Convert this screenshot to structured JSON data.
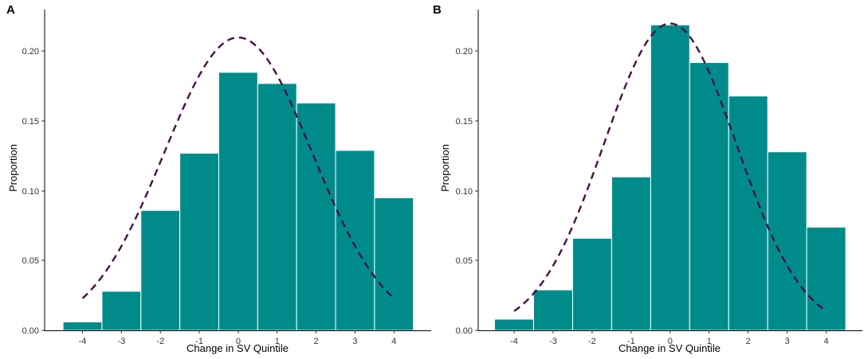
{
  "chart_data": [
    {
      "panel": "A",
      "type": "bar",
      "xlabel": "Change in SV Quintile",
      "ylabel": "Proportion",
      "x_ticks": [
        "-4",
        "-3",
        "-2",
        "-1",
        "0",
        "1",
        "2",
        "3",
        "4"
      ],
      "y_ticks": [
        "0.00",
        "0.05",
        "0.10",
        "0.15",
        "0.20"
      ],
      "ylim": [
        0,
        0.23
      ],
      "x": [
        -4,
        -3,
        -2,
        -1,
        0,
        1,
        2,
        3,
        4
      ],
      "values": [
        0.006,
        0.028,
        0.086,
        0.127,
        0.185,
        0.177,
        0.163,
        0.129,
        0.095
      ],
      "overlay": {
        "type": "normal-density-dashed",
        "mean": 0,
        "sd": 1.9,
        "peak": 0.21,
        "x_range": [
          -4,
          4
        ]
      }
    },
    {
      "panel": "B",
      "type": "bar",
      "xlabel": "Change in SV Quintile",
      "ylabel": "Proportion",
      "x_ticks": [
        "-4",
        "-3",
        "-2",
        "-1",
        "0",
        "1",
        "2",
        "3",
        "4"
      ],
      "y_ticks": [
        "0.00",
        "0.05",
        "0.10",
        "0.15",
        "0.20"
      ],
      "ylim": [
        0,
        0.23
      ],
      "x": [
        -4,
        -3,
        -2,
        -1,
        0,
        1,
        2,
        3,
        4
      ],
      "values": [
        0.008,
        0.029,
        0.066,
        0.11,
        0.219,
        0.192,
        0.168,
        0.128,
        0.074
      ],
      "overlay": {
        "type": "normal-density-dashed",
        "mean": 0,
        "sd": 1.7,
        "peak": 0.22,
        "x_range": [
          -4,
          4
        ]
      }
    }
  ],
  "colors": {
    "bar_fill": "#008b8b",
    "curve": "#4a1047"
  }
}
